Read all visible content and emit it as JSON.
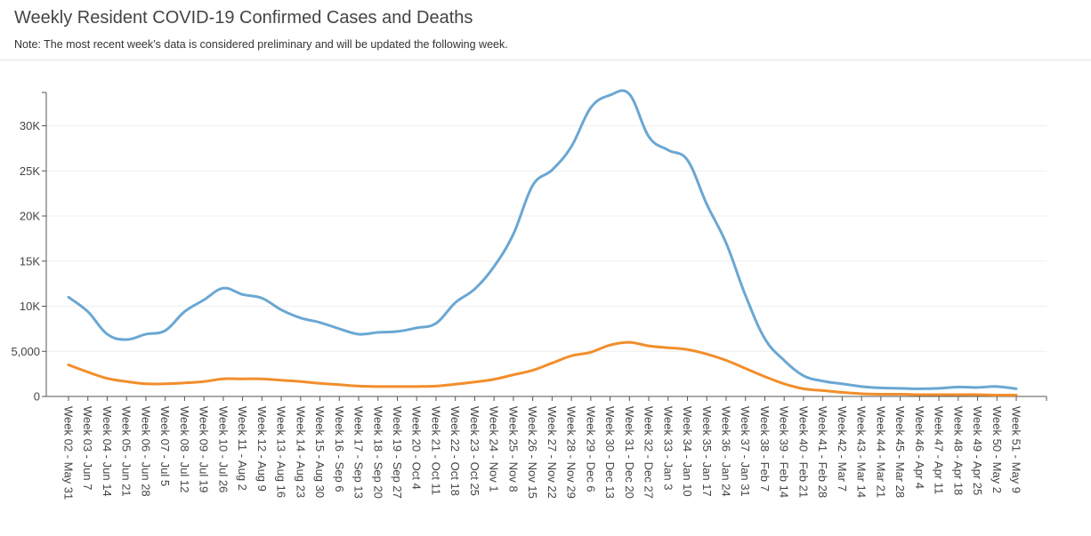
{
  "header": {
    "title": "Weekly Resident COVID-19 Confirmed Cases and Deaths",
    "note": "Note: The most recent week’s data is considered preliminary and will be updated the following week."
  },
  "colors": {
    "cases": "#6aa7d3",
    "deaths": "#f28e2b",
    "grid": "#eeeeee",
    "axis": "#555555"
  },
  "chart_data": {
    "type": "line",
    "title": "Weekly Resident COVID-19 Confirmed Cases and Deaths",
    "xlabel": "",
    "ylabel": "",
    "ylim": [
      0,
      34000
    ],
    "y_ticks": [
      0,
      5000,
      10000,
      15000,
      20000,
      25000,
      30000
    ],
    "y_tick_labels": [
      "0",
      "5,000",
      "10K",
      "15K",
      "20K",
      "25K",
      "30K"
    ],
    "grid": true,
    "categories": [
      "Week 02 - May 31",
      "Week 03 - Jun 7",
      "Week 04 - Jun 14",
      "Week 05 - Jun 21",
      "Week 06 - Jun 28",
      "Week 07 - Jul 5",
      "Week 08 - Jul 12",
      "Week 09 - Jul 19",
      "Week 10 - Jul 26",
      "Week 11 - Aug 2",
      "Week 12 - Aug 9",
      "Week 13 - Aug 16",
      "Week 14 - Aug 23",
      "Week 15 - Aug 30",
      "Week 16 - Sep 6",
      "Week 17 - Sep 13",
      "Week 18 - Sep 20",
      "Week 19 - Sep 27",
      "Week 20 - Oct 4",
      "Week 21 - Oct 11",
      "Week 22 - Oct 18",
      "Week 23 - Oct 25",
      "Week 24 - Nov 1",
      "Week 25 - Nov 8",
      "Week 26 - Nov 15",
      "Week 27 - Nov 22",
      "Week 28 - Nov 29",
      "Week 29 - Dec 6",
      "Week 30 - Dec 13",
      "Week 31 - Dec 20",
      "Week 32 - Dec 27",
      "Week 33 - Jan 3",
      "Week 34 - Jan 10",
      "Week 35 - Jan 17",
      "Week 36 - Jan 24",
      "Week 37 - Jan 31",
      "Week 38 - Feb 7",
      "Week 39 - Feb 14",
      "Week 40 - Feb 21",
      "Week 41 - Feb 28",
      "Week 42 - Mar 7",
      "Week 43 - Mar 14",
      "Week 44 - Mar 21",
      "Week 45 - Mar 28",
      "Week 46 - Apr 4",
      "Week 47 - Apr 11",
      "Week 48 - Apr 18",
      "Week 49 - Apr 25",
      "Week 50 - May 2",
      "Week 51 - May 9"
    ],
    "series": [
      {
        "values": [
          11000,
          9400,
          6900,
          6300,
          6900,
          7300,
          9400,
          10700,
          12000,
          11300,
          10900,
          9600,
          8700,
          8200,
          7500,
          6900,
          7100,
          7200,
          7600,
          8100,
          10400,
          11900,
          14400,
          18000,
          23400,
          25100,
          27700,
          32000,
          33400,
          33500,
          28800,
          27300,
          26200,
          21300,
          17000,
          11200,
          6400,
          4000,
          2300,
          1700,
          1400,
          1100,
          950,
          900,
          850,
          900,
          1050,
          1000,
          1100,
          850
        ]
      },
      {
        "values": [
          3500,
          2700,
          2000,
          1650,
          1400,
          1400,
          1500,
          1650,
          1950,
          1950,
          1950,
          1800,
          1650,
          1450,
          1300,
          1150,
          1100,
          1100,
          1100,
          1150,
          1350,
          1600,
          1900,
          2400,
          2900,
          3700,
          4500,
          4900,
          5700,
          6000,
          5600,
          5400,
          5200,
          4700,
          4000,
          3100,
          2200,
          1400,
          850,
          650,
          450,
          300,
          250,
          250,
          200,
          200,
          200,
          200,
          150,
          150
        ]
      }
    ]
  }
}
